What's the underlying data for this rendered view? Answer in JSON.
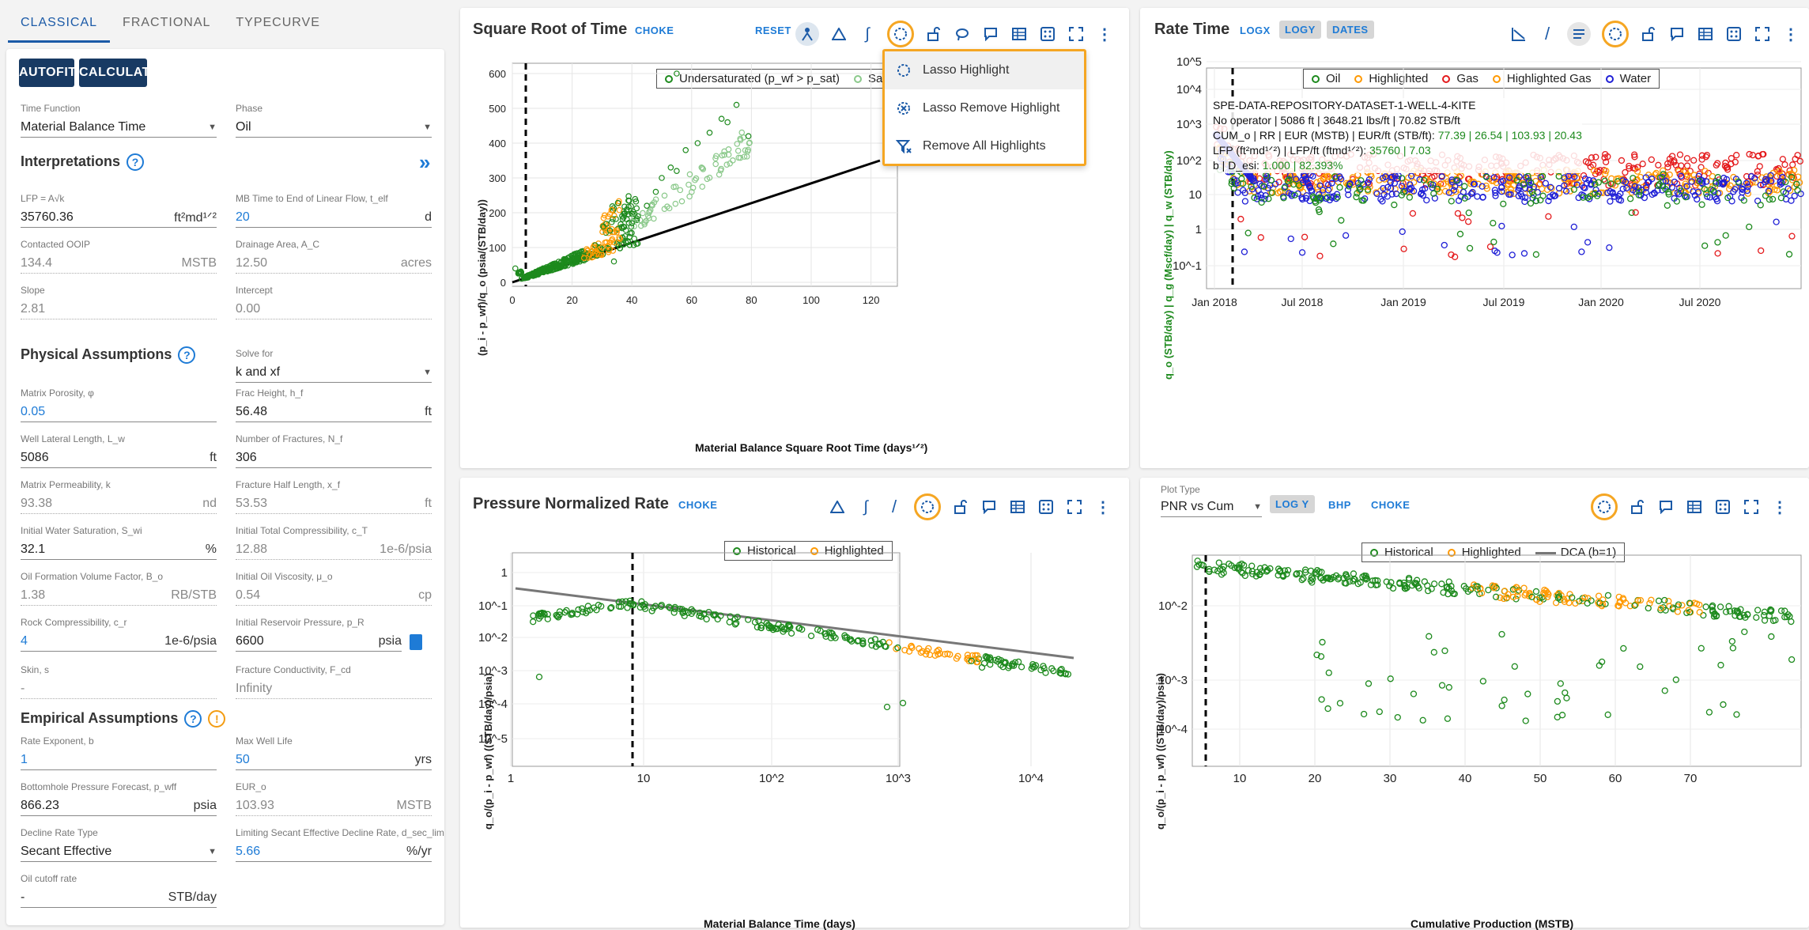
{
  "tabs": [
    "CLASSICAL",
    "FRACTIONAL",
    "TYPECURVE"
  ],
  "buttons": {
    "autofit": "AUTOFIT",
    "calculate": "CALCULATE"
  },
  "fields": {
    "time_function": {
      "label": "Time Function",
      "value": "Material Balance Time"
    },
    "phase": {
      "label": "Phase",
      "value": "Oil"
    },
    "lfp": {
      "label": "LFP = A√k",
      "value": "35760.36",
      "unit": "ft²md¹ᐟ²"
    },
    "mb_time": {
      "label": "MB Time to End of Linear Flow, t_elf",
      "value": "20",
      "unit": "d"
    },
    "ooip": {
      "label": "Contacted OOIP",
      "value": "134.4",
      "unit": "MSTB"
    },
    "drainage": {
      "label": "Drainage Area, A_C",
      "value": "12.50",
      "unit": "acres"
    },
    "slope": {
      "label": "Slope",
      "value": "2.81"
    },
    "intercept": {
      "label": "Intercept",
      "value": "0.00"
    },
    "solve_for": {
      "label": "Solve for",
      "value": "k and xf"
    },
    "porosity": {
      "label": "Matrix Porosity, φ",
      "value": "0.05"
    },
    "frac_height": {
      "label": "Frac Height, h_f",
      "value": "56.48",
      "unit": "ft"
    },
    "lateral": {
      "label": "Well Lateral Length, L_w",
      "value": "5086",
      "unit": "ft"
    },
    "num_fracs": {
      "label": "Number of Fractures, N_f",
      "value": "306"
    },
    "perm": {
      "label": "Matrix Permeability, k",
      "value": "93.38",
      "unit": "nd"
    },
    "half_length": {
      "label": "Fracture Half Length, x_f",
      "value": "53.53",
      "unit": "ft"
    },
    "sw": {
      "label": "Initial Water Saturation, S_wi",
      "value": "32.1",
      "unit": "%"
    },
    "ct": {
      "label": "Initial Total Compressibility, c_T",
      "value": "12.88",
      "unit": "1e-6/psia"
    },
    "bo": {
      "label": "Oil Formation Volume Factor, B_o",
      "value": "1.38",
      "unit": "RB/STB"
    },
    "visc": {
      "label": "Initial Oil Viscosity, μ_o",
      "value": "0.54",
      "unit": "cp"
    },
    "cr": {
      "label": "Rock Compressibility, c_r",
      "value": "4",
      "unit": "1e-6/psia"
    },
    "pi": {
      "label": "Initial Reservoir Pressure, p_R",
      "value": "6600",
      "unit": "psia"
    },
    "skin": {
      "label": "Skin, s",
      "value": "-"
    },
    "fcd": {
      "label": "Fracture Conductivity, F_cd",
      "value": "Infinity"
    },
    "b": {
      "label": "Rate Exponent, b",
      "value": "1"
    },
    "max_life": {
      "label": "Max Well Life",
      "value": "50",
      "unit": "yrs"
    },
    "pwf": {
      "label": "Bottomhole Pressure Forecast, p_wff",
      "value": "866.23",
      "unit": "psia"
    },
    "eur": {
      "label": "EUR_o",
      "value": "103.93",
      "unit": "MSTB"
    },
    "decline_type": {
      "label": "Decline Rate Type",
      "value": "Secant Effective"
    },
    "dsec": {
      "label": "Limiting Secant Effective Decline Rate, d_sec_lim",
      "value": "5.66",
      "unit": "%/yr"
    },
    "cutoff": {
      "label": "Oil cutoff rate",
      "value": "-",
      "unit": "STB/day"
    }
  },
  "sections": {
    "interp": "Interpretations",
    "physical": "Physical Assumptions",
    "empirical": "Empirical Assumptions",
    "expand": "»",
    "help": "?",
    "warn": "!"
  },
  "sqrt_panel": {
    "title": "Square Root of Time",
    "choke": "CHOKE",
    "reset": "RESET",
    "legend": [
      "Undersaturated (p_wf > p_sat)",
      "Satu"
    ],
    "xlabel": "Material Balance Square Root Time (days¹ᐟ²)",
    "ylabel": "(p_i - p_wf)/q_o (psia/(STB/day))"
  },
  "menu": {
    "items": [
      "Lasso Highlight",
      "Lasso Remove Highlight",
      "Remove All Highlights"
    ]
  },
  "rate_panel": {
    "title": "Rate Time",
    "logx": "LOGX",
    "logy": "LOGY",
    "dates": "DATES",
    "legend": [
      "Oil",
      "Highlighted",
      "Gas",
      "Highlighted Gas",
      "Water"
    ],
    "ann": [
      "SPE-DATA-REPOSITORY-DATASET-1-WELL-4-KITE",
      "No operator | 5086 ft | 3648.21 lbs/ft | 70.82 STB/ft",
      "CUM_o | RR | EUR (MSTB) | EUR/ft (STB/ft): ",
      "77.39 | 26.54 | 103.93 | 20.43",
      "LFP (ft²md¹ᐟ²) | LFP/ft (ftmd¹ᐟ²): ",
      "35760 | 7.03",
      "b | D_esi: ",
      "1.000 | 82.393%"
    ],
    "ylabel": "q_o (STB/day) | q_g (Mscf/day) | q_w (STB/day)"
  },
  "pnr_panel": {
    "title": "Pressure Normalized Rate",
    "choke": "CHOKE",
    "legend": [
      "Historical",
      "Highlighted"
    ],
    "xlabel": "Material Balance Time (days)",
    "ylabel": "q_o/(p_i - p_wf) ((STB/day)/psia)"
  },
  "cum_panel": {
    "plot_type_label": "Plot Type",
    "plot_type": "PNR vs Cum",
    "logy": "LOG Y",
    "bhp": "BHP",
    "choke": "CHOKE",
    "legend": [
      "Historical",
      "Highlighted",
      "DCA (b=1)"
    ],
    "xlabel": "Cumulative Production (MSTB)",
    "ylabel": "q_o/(p_i - p_wf) ((STB/day)/psia)"
  },
  "colors": {
    "accent": "#1b5aa7",
    "highlight": "#f5a623",
    "oil": "#1d8a1d",
    "hl": "#ff9900",
    "gas": "#e41a1c",
    "water": "#1f1fd6"
  },
  "chart_data": [
    {
      "type": "scatter",
      "title": "Square Root of Time",
      "xlabel": "Material Balance Square Root Time (days^1/2)",
      "ylabel": "(pi - pwf)/qo (psia/(STB/day))",
      "xlim": [
        0,
        130
      ],
      "ylim": [
        0,
        650
      ],
      "x_ticks": [
        0,
        20,
        40,
        60,
        80,
        100,
        120
      ],
      "y_ticks": [
        0,
        100,
        200,
        300,
        400,
        500,
        600
      ],
      "line": {
        "x": [
          0,
          123
        ],
        "y": [
          0,
          350
        ]
      },
      "vline": 4.5,
      "series": [
        {
          "name": "Undersaturated",
          "points": [
            [
              1,
              40
            ],
            [
              2,
              25
            ],
            [
              5,
              15
            ],
            [
              10,
              30
            ],
            [
              15,
              45
            ],
            [
              20,
              60
            ],
            [
              25,
              80
            ],
            [
              30,
              95
            ],
            [
              35,
              110
            ],
            [
              38,
              150
            ],
            [
              40,
              170
            ],
            [
              42,
              190
            ],
            [
              45,
              220
            ],
            [
              48,
              260
            ],
            [
              50,
              300
            ],
            [
              53,
              330
            ],
            [
              55,
              320
            ],
            [
              58,
              380
            ],
            [
              62,
              400
            ],
            [
              66,
              430
            ],
            [
              70,
              470
            ],
            [
              72,
              460
            ],
            [
              75,
              510
            ],
            [
              79,
              420
            ],
            [
              55,
              600
            ],
            [
              34,
              60
            ]
          ]
        },
        {
          "name": "Highlighted",
          "points": [
            [
              24,
              70
            ],
            [
              26,
              80
            ],
            [
              28,
              90
            ],
            [
              30,
              100
            ],
            [
              32,
              105
            ],
            [
              34,
              115
            ],
            [
              36,
              125
            ]
          ]
        }
      ]
    },
    {
      "type": "scatter",
      "title": "Rate Time",
      "xlabel": "",
      "ylabel": "qo | qg | qw",
      "x_ticks": [
        "Jan 2018",
        "Jul 2018",
        "Jan 2019",
        "Jul 2019",
        "Jan 2020",
        "Jul 2020"
      ],
      "y_ticks": [
        "10^-1",
        "1",
        "10",
        "10^2",
        "10^3",
        "10^4",
        "10^5"
      ]
    },
    {
      "type": "scatter",
      "title": "Pressure Normalized Rate",
      "xlabel": "Material Balance Time (days)",
      "ylabel": "qo/(pi - pwf)",
      "x_ticks": [
        "1",
        "10",
        "10^2",
        "10^3",
        "10^4"
      ],
      "y_ticks": [
        "1",
        "10^-1",
        "10^-2",
        "10^-3",
        "10^-4",
        "10^-5"
      ]
    },
    {
      "type": "scatter",
      "title": "PNR vs Cum",
      "xlabel": "Cumulative Production (MSTB)",
      "ylabel": "qo/(pi - pwf)",
      "x_ticks": [
        10,
        20,
        30,
        40,
        50,
        60,
        70
      ],
      "y_ticks": [
        "10^-2",
        "10^-3",
        "10^-4"
      ]
    }
  ]
}
